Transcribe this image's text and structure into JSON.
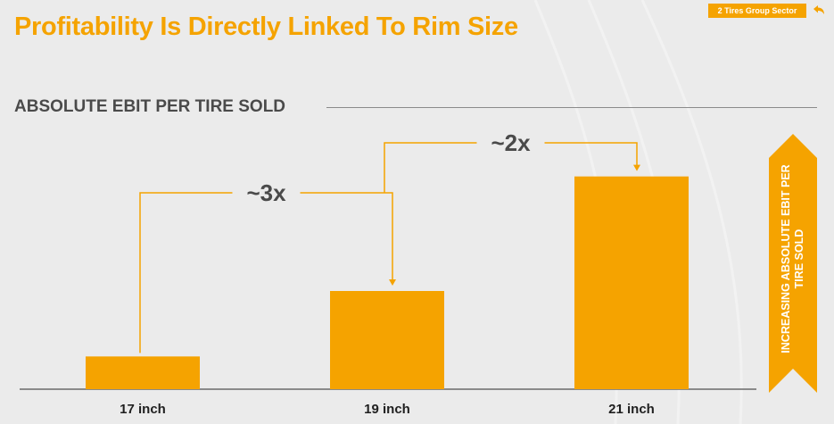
{
  "header": {
    "title": "Profitability Is Directly Linked To Rim Size",
    "tag_label": "2 Tires Group Sector",
    "back_icon": "back-arrow-icon"
  },
  "colors": {
    "accent": "#f5a300",
    "text_dark": "#4a4a4a",
    "background": "#ebebeb"
  },
  "side_arrow": {
    "text": "INCREASING ABSOLUTE EBIT PER TIRE SOLD"
  },
  "chart_data": {
    "type": "bar",
    "title": "ABSOLUTE EBIT PER TIRE SOLD",
    "categories": [
      "17 inch",
      "19 inch",
      "21 inch"
    ],
    "values": [
      1,
      3,
      6.5
    ],
    "ylim": [
      0,
      7.5
    ],
    "grid": false,
    "annotations": [
      {
        "from": "17 inch",
        "to": "19 inch",
        "label": "~3x"
      },
      {
        "from": "19 inch",
        "to": "21 inch",
        "label": "~2x"
      }
    ]
  }
}
